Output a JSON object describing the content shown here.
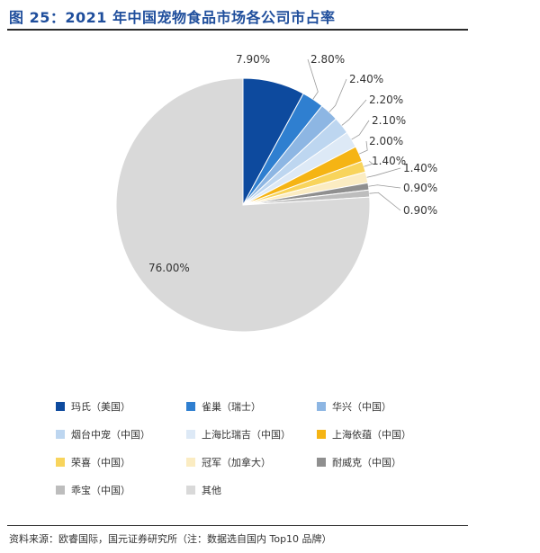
{
  "figure": {
    "title": "图 25：2021 年中国宠物食品市场各公司市占率",
    "source": "资料来源：欧睿国际，国元证券研究所（注：数据选自国内 Top10 品牌）"
  },
  "chart_data": {
    "type": "pie",
    "legend_position": "bottom",
    "slices": [
      {
        "name": "玛氏（美国）",
        "value": 7.9,
        "label": "7.90%",
        "color": "#0d4a9e"
      },
      {
        "name": "雀巢（瑞士）",
        "value": 2.8,
        "label": "2.80%",
        "color": "#2f7fd0"
      },
      {
        "name": "华兴（中国）",
        "value": 2.4,
        "label": "2.40%",
        "color": "#8db6e3"
      },
      {
        "name": "烟台中宠（中国）",
        "value": 2.2,
        "label": "2.20%",
        "color": "#bdd6f0"
      },
      {
        "name": "上海比瑞吉（中国）",
        "value": 2.1,
        "label": "2.10%",
        "color": "#dde9f6"
      },
      {
        "name": "上海依蕴（中国）",
        "value": 2.0,
        "label": "2.00%",
        "color": "#f5b414"
      },
      {
        "name": "荣喜（中国）",
        "value": 1.4,
        "label": "1.40%",
        "color": "#f8d45c"
      },
      {
        "name": "冠军（加拿大）",
        "value": 1.4,
        "label": "1.40%",
        "color": "#fbecc2"
      },
      {
        "name": "耐威克（中国）",
        "value": 0.9,
        "label": "0.90%",
        "color": "#8f8f8f"
      },
      {
        "name": "乖宝（中国）",
        "value": 0.9,
        "label": "0.90%",
        "color": "#bdbdbd"
      },
      {
        "name": "其他",
        "value": 76.0,
        "label": "76.00%",
        "color": "#d9d9d9"
      }
    ]
  }
}
